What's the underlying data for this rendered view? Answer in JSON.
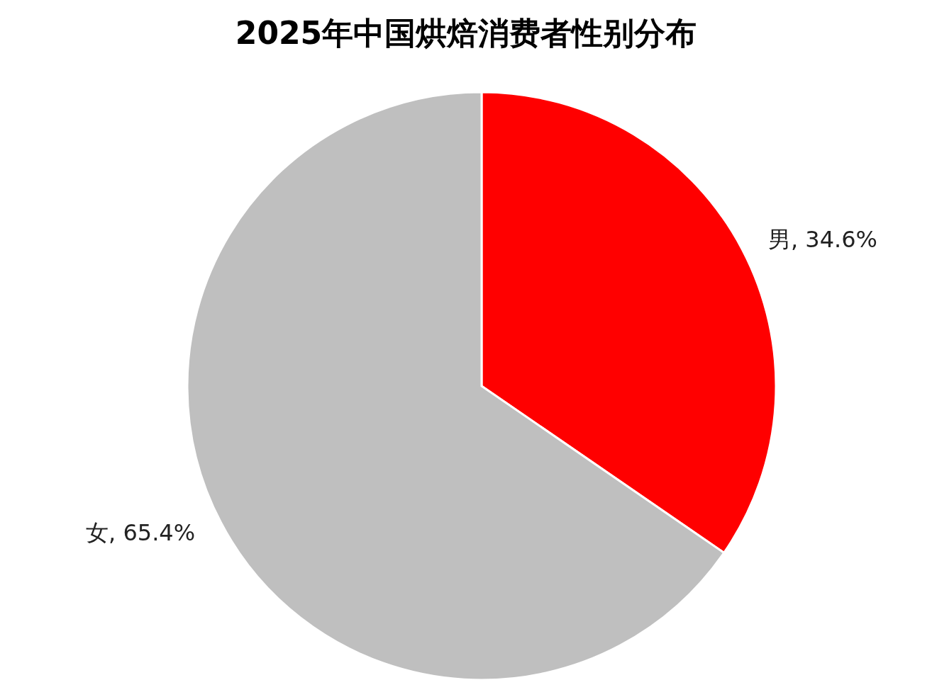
{
  "chart_data": {
    "type": "pie",
    "title": "2025年中国烘焙消费者性别分布",
    "categories": [
      "男",
      "女"
    ],
    "values": [
      34.6,
      65.4
    ],
    "colors": [
      "#ff0000",
      "#bfbfbf"
    ],
    "value_labels": [
      ", 34.6%",
      ", 65.4%"
    ]
  }
}
